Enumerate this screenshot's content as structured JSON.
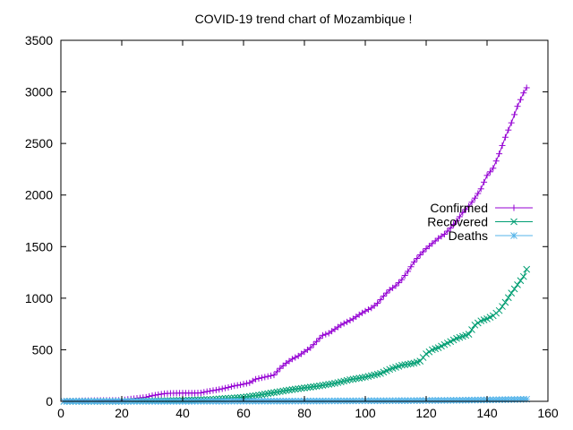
{
  "chart_data": {
    "type": "line",
    "title": "COVID-19 trend chart of Mozambique !",
    "xlabel": "",
    "ylabel": "",
    "xlim": [
      0,
      160
    ],
    "ylim": [
      0,
      3500
    ],
    "xticks": [
      0,
      20,
      40,
      60,
      80,
      100,
      120,
      140,
      160
    ],
    "yticks": [
      0,
      500,
      1000,
      1500,
      2000,
      2500,
      3000,
      3500
    ],
    "grid": false,
    "legend_position": "right",
    "series": [
      {
        "name": "Confirmed",
        "color": "#9400d3",
        "marker": "plus",
        "points": [
          [
            1,
            1
          ],
          [
            5,
            5
          ],
          [
            10,
            8
          ],
          [
            15,
            10
          ],
          [
            20,
            10
          ],
          [
            22,
            20
          ],
          [
            25,
            30
          ],
          [
            28,
            40
          ],
          [
            30,
            55
          ],
          [
            32,
            65
          ],
          [
            34,
            75
          ],
          [
            36,
            78
          ],
          [
            40,
            80
          ],
          [
            44,
            80
          ],
          [
            46,
            82
          ],
          [
            48,
            95
          ],
          [
            50,
            105
          ],
          [
            52,
            115
          ],
          [
            55,
            135
          ],
          [
            57,
            150
          ],
          [
            59,
            160
          ],
          [
            62,
            180
          ],
          [
            64,
            215
          ],
          [
            67,
            235
          ],
          [
            70,
            255
          ],
          [
            72,
            320
          ],
          [
            74,
            370
          ],
          [
            76,
            410
          ],
          [
            78,
            440
          ],
          [
            80,
            480
          ],
          [
            82,
            520
          ],
          [
            84,
            580
          ],
          [
            86,
            640
          ],
          [
            88,
            660
          ],
          [
            90,
            700
          ],
          [
            92,
            740
          ],
          [
            94,
            770
          ],
          [
            96,
            800
          ],
          [
            98,
            840
          ],
          [
            100,
            875
          ],
          [
            102,
            905
          ],
          [
            104,
            950
          ],
          [
            106,
            1020
          ],
          [
            108,
            1080
          ],
          [
            110,
            1120
          ],
          [
            112,
            1180
          ],
          [
            114,
            1260
          ],
          [
            116,
            1350
          ],
          [
            118,
            1420
          ],
          [
            120,
            1480
          ],
          [
            122,
            1530
          ],
          [
            124,
            1580
          ],
          [
            126,
            1620
          ],
          [
            128,
            1680
          ],
          [
            130,
            1750
          ],
          [
            132,
            1830
          ],
          [
            134,
            1890
          ],
          [
            136,
            1970
          ],
          [
            138,
            2060
          ],
          [
            140,
            2190
          ],
          [
            142,
            2260
          ],
          [
            144,
            2400
          ],
          [
            146,
            2560
          ],
          [
            148,
            2700
          ],
          [
            150,
            2860
          ],
          [
            152,
            2990
          ],
          [
            153,
            3040
          ]
        ]
      },
      {
        "name": "Recovered",
        "color": "#009e73",
        "marker": "cross",
        "points": [
          [
            1,
            0
          ],
          [
            10,
            0
          ],
          [
            20,
            0
          ],
          [
            30,
            5
          ],
          [
            40,
            10
          ],
          [
            45,
            15
          ],
          [
            50,
            20
          ],
          [
            55,
            30
          ],
          [
            60,
            40
          ],
          [
            65,
            60
          ],
          [
            70,
            85
          ],
          [
            75,
            110
          ],
          [
            80,
            130
          ],
          [
            85,
            150
          ],
          [
            90,
            175
          ],
          [
            95,
            210
          ],
          [
            100,
            235
          ],
          [
            105,
            270
          ],
          [
            108,
            310
          ],
          [
            112,
            350
          ],
          [
            116,
            370
          ],
          [
            118,
            390
          ],
          [
            120,
            460
          ],
          [
            122,
            500
          ],
          [
            124,
            520
          ],
          [
            126,
            550
          ],
          [
            128,
            580
          ],
          [
            130,
            610
          ],
          [
            132,
            630
          ],
          [
            134,
            650
          ],
          [
            136,
            740
          ],
          [
            138,
            780
          ],
          [
            140,
            800
          ],
          [
            142,
            830
          ],
          [
            144,
            880
          ],
          [
            146,
            960
          ],
          [
            148,
            1050
          ],
          [
            150,
            1130
          ],
          [
            152,
            1210
          ],
          [
            153,
            1280
          ]
        ]
      },
      {
        "name": "Deaths",
        "color": "#56b4e9",
        "marker": "star",
        "points": [
          [
            1,
            0
          ],
          [
            20,
            0
          ],
          [
            40,
            0
          ],
          [
            50,
            1
          ],
          [
            60,
            2
          ],
          [
            70,
            2
          ],
          [
            80,
            3
          ],
          [
            90,
            4
          ],
          [
            100,
            5
          ],
          [
            110,
            6
          ],
          [
            120,
            8
          ],
          [
            130,
            10
          ],
          [
            140,
            14
          ],
          [
            150,
            18
          ],
          [
            153,
            20
          ]
        ]
      }
    ]
  }
}
